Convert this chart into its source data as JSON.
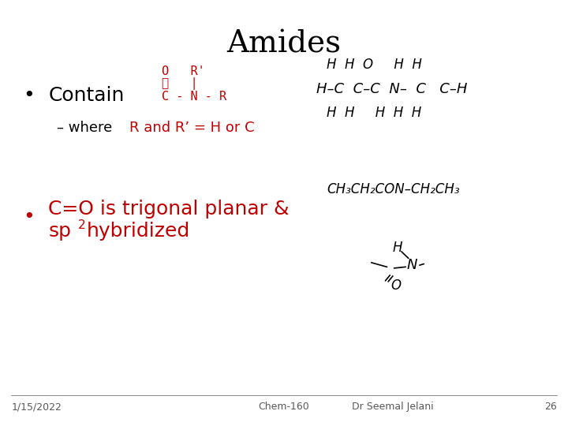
{
  "title": "Amides",
  "title_fontsize": 28,
  "title_font": "serif",
  "bg_color": "#ffffff",
  "footer_left": "1/15/2022",
  "footer_center": "Chem-160",
  "footer_right": "Dr Seemal Jelani",
  "footer_page": "26",
  "footer_fontsize": 9,
  "red_color": "#c00000",
  "black_color": "#000000",
  "gray_color": "#595959"
}
